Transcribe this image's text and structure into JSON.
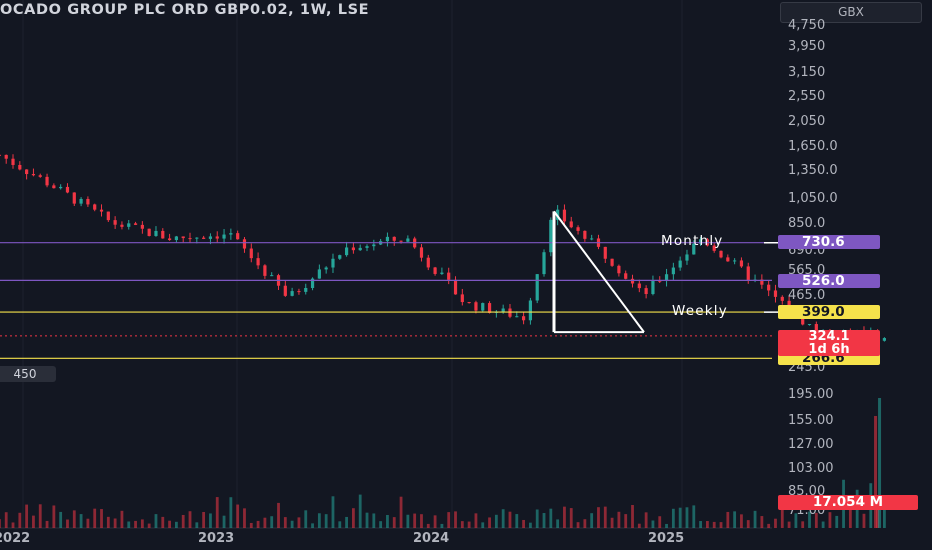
{
  "header": {
    "title": "OCADO GROUP PLC ORD GBP0.02, 1W, LSE",
    "currency": "GBX"
  },
  "left_badge": "450",
  "price_axis_labels": [
    "4,750",
    "3,950",
    "3,150",
    "2,550",
    "2,050",
    "1,650.0",
    "1,350.0",
    "1,050.0",
    "850.0",
    "690.0",
    "565.0",
    "465.0",
    "245.0"
  ],
  "volume_axis_labels": [
    "195.00",
    "155.00",
    "127.00",
    "103.00",
    "85.00",
    "71.00"
  ],
  "levels": {
    "monthly_label": "Monthly",
    "weekly_label": "Weekly",
    "monthly_value": "730.6",
    "monthly2_value": "526.0",
    "weekly_value": "399.0",
    "support_value": "266.6",
    "last_price": "324.1",
    "countdown": "1d 6h",
    "volume_value": "17.054 M"
  },
  "x_axis_labels": [
    "2022",
    "2023",
    "2024",
    "2025"
  ],
  "colors": {
    "background": "#131722",
    "up": "#26a69a",
    "down": "#f23645",
    "monthly_line": "#7e57c2",
    "weekly_line": "#f5e24b",
    "triangle": "#ffffff"
  },
  "chart_data": {
    "type": "candlestick",
    "title": "OCADO GROUP PLC ORD GBP0.02, 1W, LSE",
    "currency": "GBX",
    "y_scale": "log",
    "x_range": [
      "2021-12",
      "2025-03"
    ],
    "price_levels": [
      {
        "name": "Monthly",
        "value": 730.6
      },
      {
        "name": "",
        "value": 526.0
      },
      {
        "name": "Weekly",
        "value": 399.0
      },
      {
        "name": "",
        "value": 266.6
      }
    ],
    "last_price": 324.1,
    "last_volume": "17.054 M",
    "approx_close_path": [
      {
        "date": "2021-12",
        "close": 1620
      },
      {
        "date": "2022-02",
        "close": 1200
      },
      {
        "date": "2022-04",
        "close": 870
      },
      {
        "date": "2022-06",
        "close": 760
      },
      {
        "date": "2022-08",
        "close": 790
      },
      {
        "date": "2022-10",
        "close": 450
      },
      {
        "date": "2022-12",
        "close": 700
      },
      {
        "date": "2023-02",
        "close": 760
      },
      {
        "date": "2023-04",
        "close": 430
      },
      {
        "date": "2023-06",
        "close": 380
      },
      {
        "date": "2023-07",
        "close": 960
      },
      {
        "date": "2023-09",
        "close": 620
      },
      {
        "date": "2023-10",
        "close": 460
      },
      {
        "date": "2023-12",
        "close": 760
      },
      {
        "date": "2024-02",
        "close": 500
      },
      {
        "date": "2024-04",
        "close": 330
      },
      {
        "date": "2024-06",
        "close": 324.1
      }
    ]
  }
}
